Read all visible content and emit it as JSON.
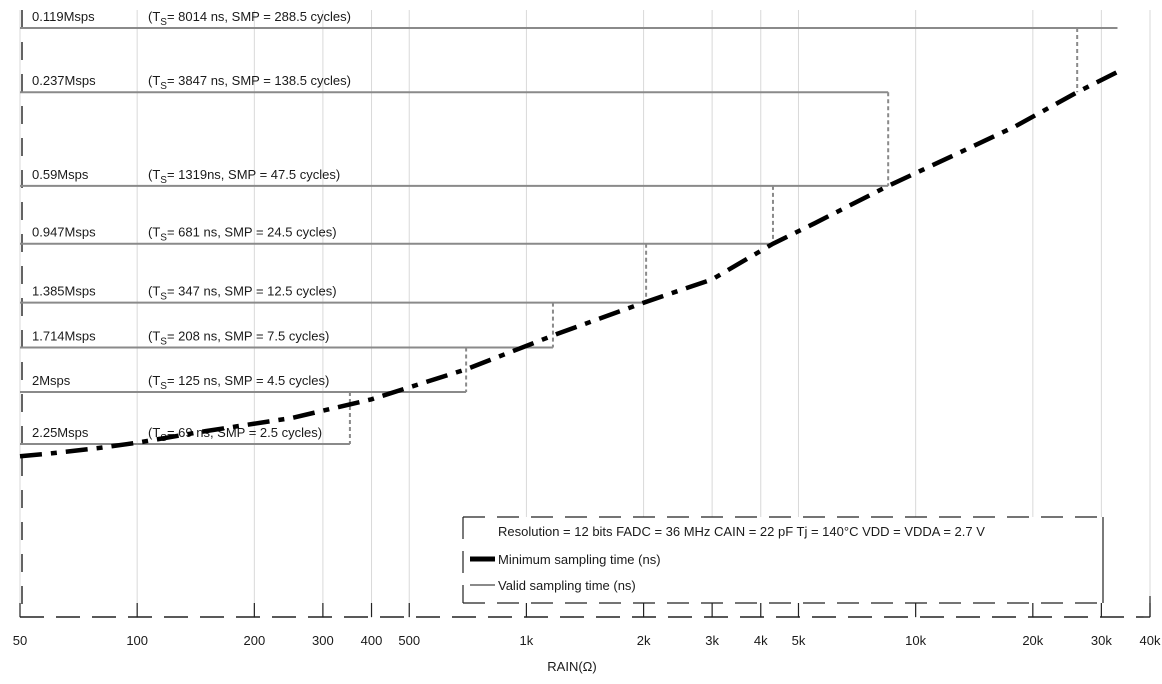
{
  "chart_data": {
    "type": "line",
    "xscale": "log",
    "xlim": [
      50,
      40000
    ],
    "xlabel": "RAIN(Ω)",
    "x_ticks": [
      {
        "value": 50,
        "label": "50"
      },
      {
        "value": 100,
        "label": "100"
      },
      {
        "value": 200,
        "label": "200"
      },
      {
        "value": 300,
        "label": "300"
      },
      {
        "value": 400,
        "label": "400"
      },
      {
        "value": 500,
        "label": "500"
      },
      {
        "value": 1000,
        "label": "1k"
      },
      {
        "value": 2000,
        "label": "2k"
      },
      {
        "value": 3000,
        "label": "3k"
      },
      {
        "value": 4000,
        "label": "4k"
      },
      {
        "value": 5000,
        "label": "5k"
      },
      {
        "value": 10000,
        "label": "10k"
      },
      {
        "value": 20000,
        "label": "20k"
      },
      {
        "value": 30000,
        "label": "30k"
      },
      {
        "value": 40000,
        "label": "40k"
      }
    ],
    "grid": true,
    "legend": {
      "placement": "bottom-right",
      "header": "Resolution = 12 bits FADC = 36 MHz CAIN = 22 pF Tj = 140°C VDD = VDDA = 2.7 V",
      "entries": [
        "Minimum sampling time (ns)",
        "Valid sampling time (ns)"
      ]
    },
    "series": [
      {
        "name": "Minimum sampling time (ns)",
        "color": "#000000",
        "style": "dash-dot",
        "points": [
          [
            50,
            60
          ],
          [
            60,
            62
          ],
          [
            80,
            66
          ],
          [
            100,
            70
          ],
          [
            150,
            80
          ],
          [
            250,
            93
          ],
          [
            400,
            115
          ],
          [
            700,
            162
          ],
          [
            1200,
            243
          ],
          [
            2000,
            347
          ],
          [
            3000,
            453
          ],
          [
            4300,
            681
          ],
          [
            5500,
            860
          ],
          [
            8500,
            1319
          ],
          [
            12000,
            1800
          ],
          [
            18000,
            2600
          ],
          [
            26000,
            3847
          ],
          [
            33000,
            4850
          ]
        ]
      }
    ],
    "levels": [
      {
        "rate": "0.119Msps",
        "ts": "8014 ns",
        "smp": "288.5 cycles",
        "end_x": 33000,
        "drop_x": 26000
      },
      {
        "rate": "0.237Msps",
        "ts": "3847 ns",
        "smp": "138.5 cycles",
        "end_x": 8500,
        "drop_x": 8500
      },
      {
        "rate": "0.59Msps",
        "ts": "1319ns",
        "smp": "47.5 cycles",
        "end_x": 8500,
        "drop_x": 4300
      },
      {
        "rate": "0.947Msps",
        "ts": "681 ns",
        "smp": "24.5 cycles",
        "end_x": 4300,
        "drop_x": 2030
      },
      {
        "rate": "1.385Msps",
        "ts": "347 ns",
        "smp": "12.5 cycles",
        "end_x": 2030,
        "drop_x": 1170
      },
      {
        "rate": "1.714Msps",
        "ts": "208 ns",
        "smp": "7.5 cycles",
        "end_x": 1170,
        "drop_x": 700
      },
      {
        "rate": "2Msps",
        "ts": "125 ns",
        "smp": "4.5 cycles",
        "end_x": 700,
        "drop_x": 352
      },
      {
        "rate": "2.25Msps",
        "ts": "69 ns",
        "smp": "2.5 cycles",
        "end_x": 352,
        "drop_x": null
      }
    ]
  },
  "colors": {
    "level_line": "#8a8a8a",
    "grid": "#d9d9d9",
    "curve": "#000000",
    "drop_line": "#8a8a8a"
  }
}
